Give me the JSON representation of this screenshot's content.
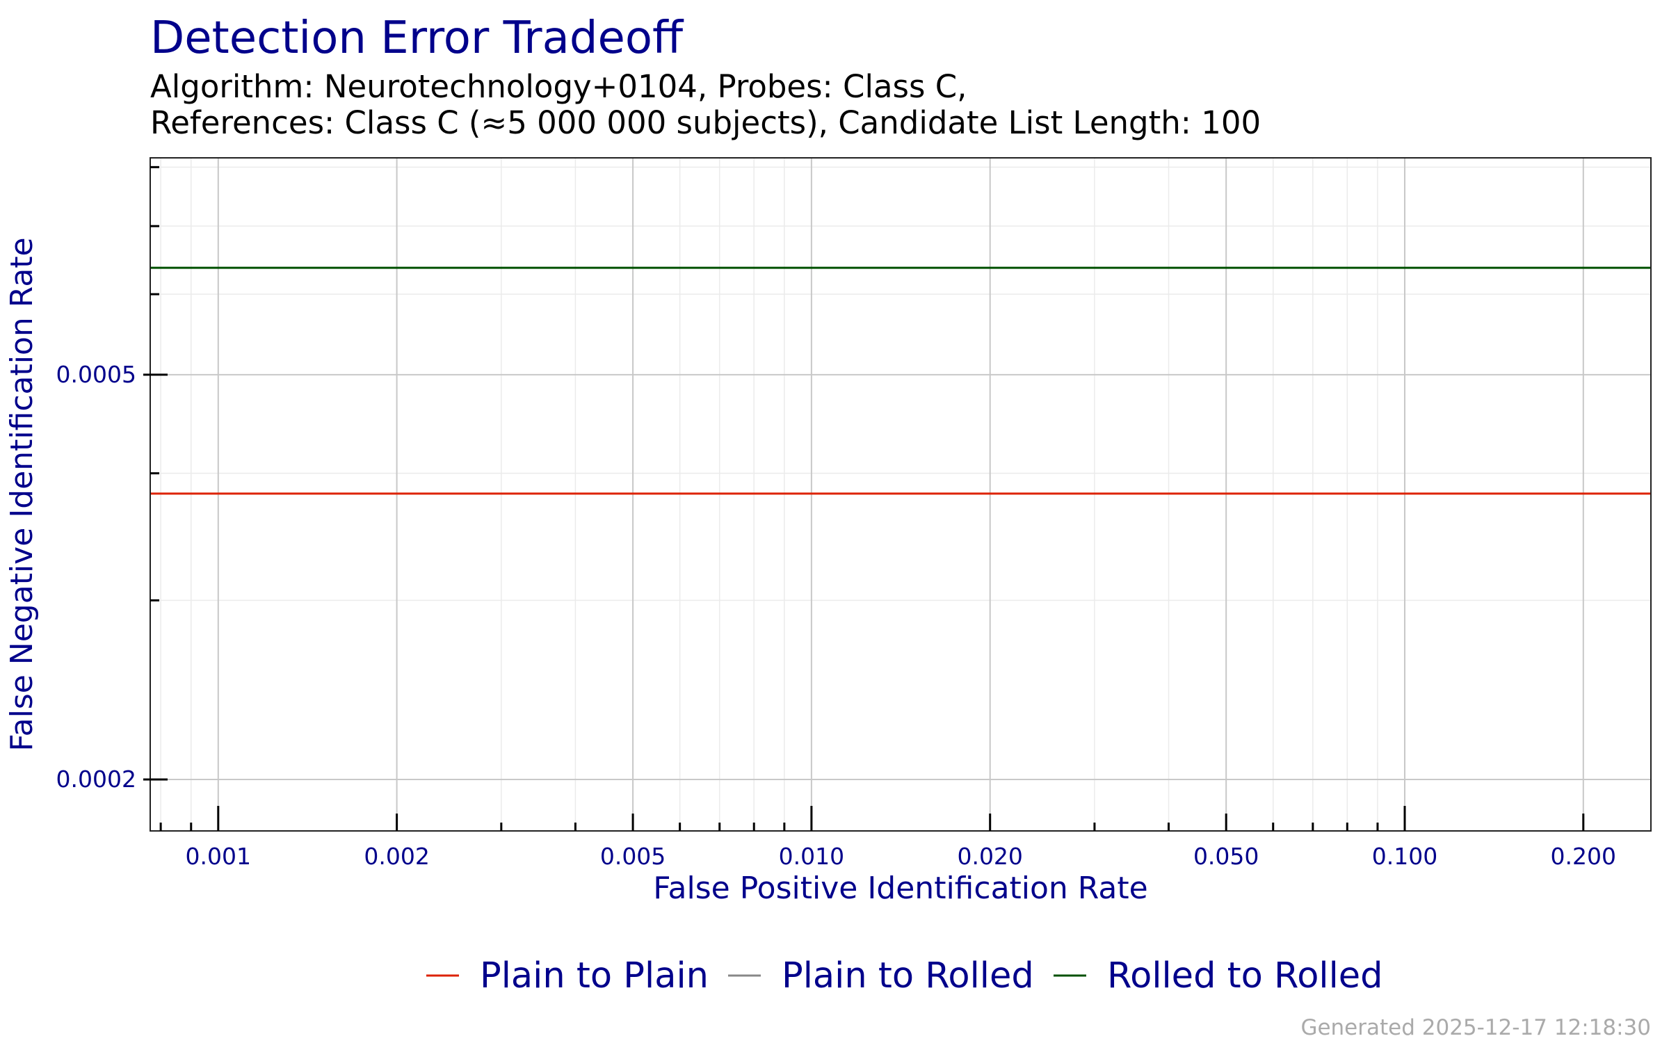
{
  "chart_data": {
    "type": "line",
    "title": "Detection Error Tradeoff",
    "subtitle": [
      "Algorithm: Neurotechnology+0104, Probes: Class C,",
      "References: Class C (≈5 000 000 subjects), Candidate List Length: 100"
    ],
    "xlabel": "False Positive Identification Rate",
    "ylabel": "False Negative Identification Rate",
    "xlog": true,
    "ylog": true,
    "grid": true,
    "legend": "bottom",
    "x": [
      0.000768,
      0.26
    ],
    "series": [
      {
        "name": "Plain to Plain",
        "color": "#dd2200",
        "values": [
          0.000382,
          0.000382
        ]
      },
      {
        "name": "Plain to Rolled",
        "color": "#888888",
        "values": [
          null,
          null
        ]
      },
      {
        "name": "Rolled to Rolled",
        "color": "#005000",
        "values": [
          0.000637,
          0.000637
        ]
      }
    ],
    "xlim": [
      0.000768,
      0.26
    ],
    "ylim": [
      0.000178,
      0.000817
    ],
    "xticks": [
      0.001,
      0.002,
      0.005,
      {
        "value": 0.01,
        "label": "0.010"
      },
      {
        "value": 0.02,
        "label": "0.020"
      },
      {
        "value": 0.05,
        "label": "0.050"
      },
      {
        "value": 0.1,
        "label": "0.100"
      },
      {
        "value": 0.2,
        "label": "0.200"
      }
    ],
    "xminor_ticks": [
      0.0008,
      0.0009,
      0.003,
      0.004,
      0.006,
      0.007,
      0.008,
      0.009,
      0.03,
      0.04,
      0.06,
      0.07,
      0.08,
      0.09
    ],
    "yticks": [
      0.0002,
      0.0005
    ],
    "yminor_ticks": [
      0.0003,
      0.0004,
      0.0006,
      0.0007,
      0.0008
    ]
  },
  "footer": "Generated 2025-12-17 12:18:30"
}
